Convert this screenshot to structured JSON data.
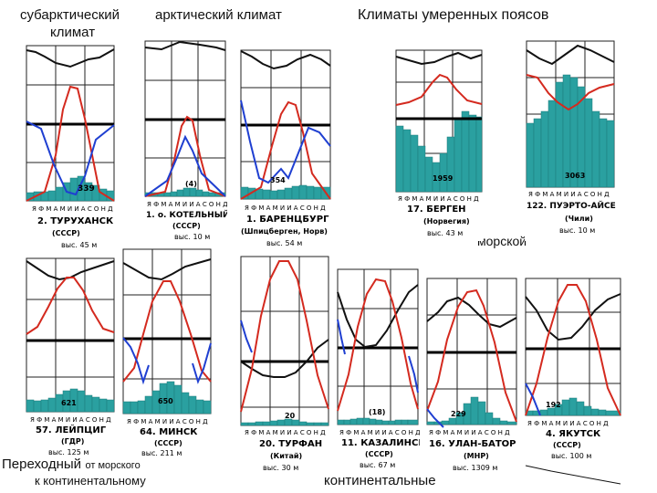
{
  "headings": {
    "subarctic_line1": "субарктический",
    "subarctic_line2": "климат",
    "arctic": "арктический климат",
    "temperate": "Климаты умеренных поясов",
    "marine": "морской",
    "transitional_main": "Переходный",
    "transitional_rest": "от морского",
    "transitional_line2": "к континентальному",
    "continental": "континентальные"
  },
  "colors": {
    "temperature": "#d42a1f",
    "humidity": "#1f3fd1",
    "pressure": "#111111",
    "precip": "#2aa0a0",
    "grid": "#222222"
  },
  "month_letters": "Я Ф М А М И И А С О Н Д",
  "stations": [
    {
      "id": "turukhansk",
      "name": "2. ТУРУХАНСК",
      "country": "(СССР)",
      "elev": "выс. 45 м",
      "precip": "339"
    },
    {
      "id": "kotelny",
      "name": "1. о. КОТЕЛЬНЫЙ",
      "country": "(СССР)",
      "elev": "выс. 10 м",
      "precip": "(4)"
    },
    {
      "id": "barentsburg",
      "name": "1. БАРЕНЦБУРГ",
      "country": "(Шпицберген, Норв)",
      "elev": "выс. 54 м",
      "precip": "354"
    },
    {
      "id": "bergen",
      "name": "17. БЕРГЕН",
      "country": "(Норвегия)",
      "elev": "выс. 43 м",
      "precip": "1959"
    },
    {
      "id": "puerto",
      "name": "122. ПУЭРТО-АЙСЕН",
      "country": "(Чили)",
      "elev": "выс. 10 м",
      "precip": "3063"
    },
    {
      "id": "leipzig",
      "name": "57. ЛЕЙПЦИГ",
      "country": "(ГДР)",
      "elev": "выс. 125 м",
      "precip": "621"
    },
    {
      "id": "minsk",
      "name": "64. МИНСК",
      "country": "(СССР)",
      "elev": "выс. 211 м",
      "precip": "650"
    },
    {
      "id": "turfan",
      "name": "20. ТУРФАН",
      "country": "(Китай)",
      "elev": "выс. 30 м",
      "precip": "20"
    },
    {
      "id": "kazalinsk",
      "name": "11. КАЗАЛИНСК",
      "country": "(СССР)",
      "elev": "выс. 67 м",
      "precip": "(18)"
    },
    {
      "id": "ulanbator",
      "name": "16. УЛАН-БАТОР",
      "country": "(МНР)",
      "elev": "выс. 1309 м",
      "precip": "229"
    },
    {
      "id": "yakutsk",
      "name": "4. ЯКУТСК",
      "country": "(СССР)",
      "elev": "выс. 100 м",
      "precip": "192"
    }
  ]
}
